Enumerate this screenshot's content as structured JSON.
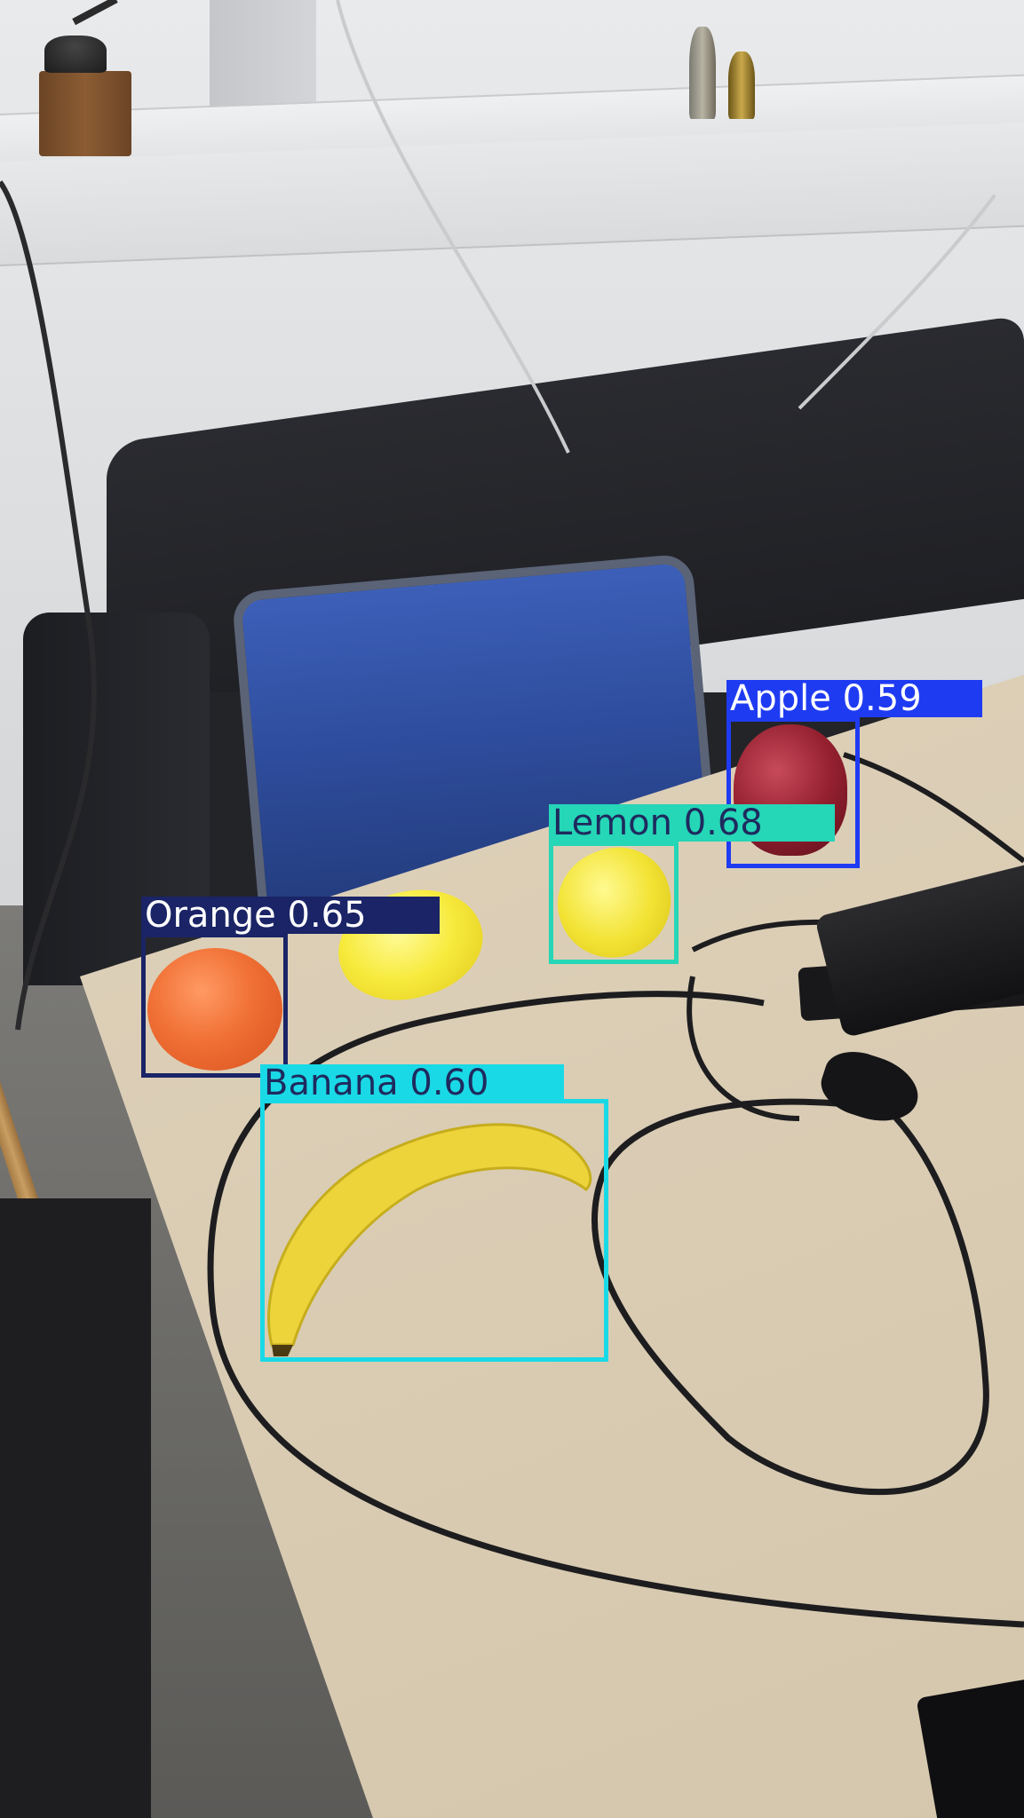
{
  "image": {
    "description_kind": "object-detection-overlay"
  },
  "detections": [
    {
      "label": "Apple 0.59",
      "class": "Apple",
      "confidence": 0.59,
      "box_color": "#1f3bf2",
      "label_text_color": "#ffffff"
    },
    {
      "label": "Lemon 0.68",
      "class": "Lemon",
      "confidence": 0.68,
      "box_color": "#25d6b7",
      "label_text_color": "#1e2a5e"
    },
    {
      "label": "Orange 0.65",
      "class": "Orange",
      "confidence": 0.65,
      "box_color": "#1a2466",
      "label_text_color": "#ffffff"
    },
    {
      "label": "Banana 0.60",
      "class": "Banana",
      "confidence": 0.6,
      "box_color": "#1ad9e6",
      "label_text_color": "#1e2a5e"
    }
  ]
}
